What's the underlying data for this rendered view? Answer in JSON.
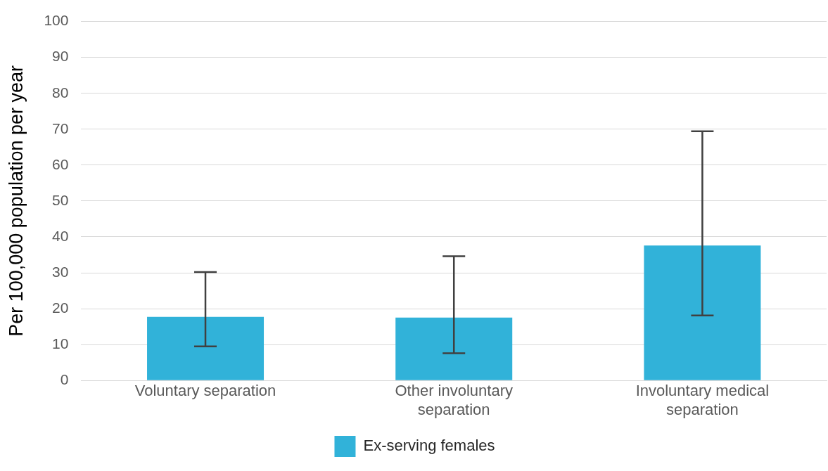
{
  "chart_data": {
    "type": "bar",
    "ylabel": "Per 100,000 population per year",
    "categories": [
      "Voluntary separation",
      "Other involuntary separation",
      "Involuntary medical separation"
    ],
    "series": [
      {
        "name": "Ex-serving females",
        "color": "#31b2d9",
        "values": [
          17.7,
          17.5,
          37.6
        ],
        "errors": [
          [
            9.5,
            30.2
          ],
          [
            7.6,
            34.6
          ],
          [
            18.1,
            69.4
          ]
        ]
      }
    ],
    "ylim": [
      0,
      100
    ],
    "yticks": [
      0,
      10,
      20,
      30,
      40,
      50,
      60,
      70,
      80,
      90,
      100
    ],
    "grid": "y",
    "legend": "bottom"
  }
}
